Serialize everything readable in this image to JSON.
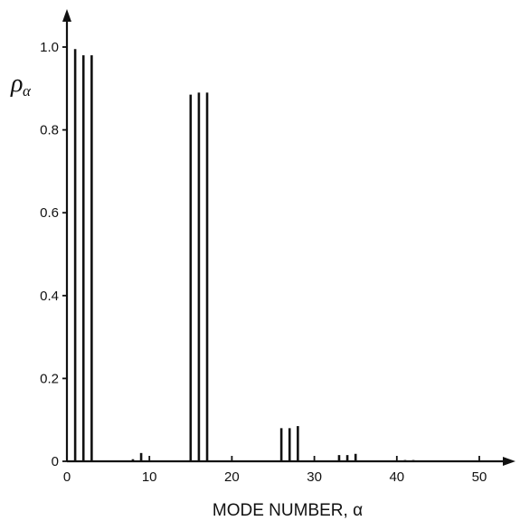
{
  "chart_data": {
    "type": "bar",
    "title": "",
    "xlabel": "MODE NUMBER, α",
    "ylabel": "ρ",
    "ylabel_subscript": "α",
    "xlim": [
      0,
      55
    ],
    "ylim": [
      0,
      1.1
    ],
    "xticks": [
      0,
      10,
      20,
      30,
      40,
      50
    ],
    "yticks": [
      0,
      0.2,
      0.4,
      0.6,
      0.8,
      1.0
    ],
    "xtick_labels": [
      "0",
      "10",
      "20",
      "30",
      "40",
      "50"
    ],
    "ytick_labels": [
      "0",
      "0.2",
      "0.4",
      "0.6",
      "0.8",
      "1.0"
    ],
    "grid": false,
    "series": [
      {
        "x": [
          1,
          2,
          3,
          8,
          9,
          15,
          16,
          17,
          26,
          27,
          28,
          33,
          34,
          35,
          41,
          42
        ],
        "values": [
          0.995,
          0.98,
          0.98,
          0.005,
          0.02,
          0.885,
          0.89,
          0.89,
          0.08,
          0.08,
          0.085,
          0.015,
          0.015,
          0.018,
          0.003,
          0.003
        ]
      }
    ]
  }
}
